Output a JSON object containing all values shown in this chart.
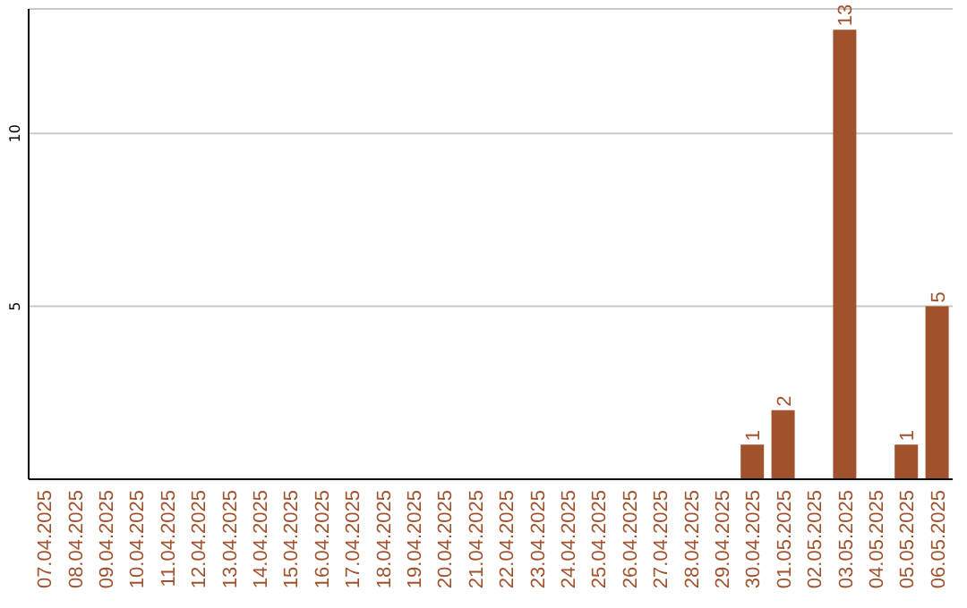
{
  "chart_data": {
    "type": "bar",
    "categories": [
      "07.04.2025",
      "08.04.2025",
      "09.04.2025",
      "10.04.2025",
      "11.04.2025",
      "12.04.2025",
      "13.04.2025",
      "14.04.2025",
      "15.04.2025",
      "16.04.2025",
      "17.04.2025",
      "18.04.2025",
      "19.04.2025",
      "20.04.2025",
      "21.04.2025",
      "22.04.2025",
      "23.04.2025",
      "24.04.2025",
      "25.04.2025",
      "26.04.2025",
      "27.04.2025",
      "28.04.2025",
      "29.04.2025",
      "30.04.2025",
      "01.05.2025",
      "02.05.2025",
      "03.05.2025",
      "04.05.2025",
      "05.05.2025",
      "06.05.2025"
    ],
    "values": [
      0,
      0,
      0,
      0,
      0,
      0,
      0,
      0,
      0,
      0,
      0,
      0,
      0,
      0,
      0,
      0,
      0,
      0,
      0,
      0,
      0,
      0,
      0,
      1,
      2,
      0,
      13,
      0,
      1,
      5
    ],
    "value_labels": [
      null,
      null,
      null,
      null,
      null,
      null,
      null,
      null,
      null,
      null,
      null,
      null,
      null,
      null,
      null,
      null,
      null,
      null,
      null,
      null,
      null,
      null,
      null,
      "1",
      "2",
      null,
      "13",
      null,
      "1",
      "5"
    ],
    "color": "#a0522d",
    "ylim": [
      0,
      13.6
    ],
    "yticks": [
      5,
      10
    ],
    "grid": "y"
  }
}
